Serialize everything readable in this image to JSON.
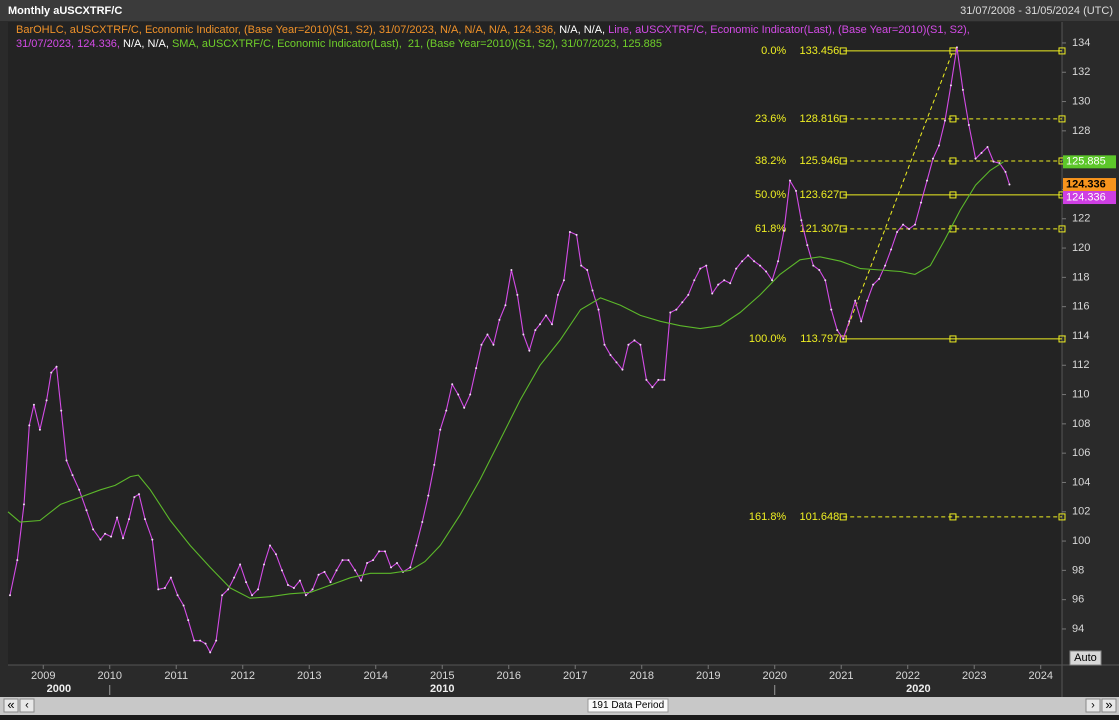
{
  "chart_data": {
    "type": "line",
    "title": "Monthly aUSCXTRF/C",
    "date_range": "31/07/2008 - 31/05/2024 (UTC)",
    "legend": [
      [
        {
          "text": "BarOHLC, aUSCXTRF/C, Economic Indicator, (Base Year=2010)(S1, S2), 31/07/2023, N/A, N/A, N/A, 124.336, ",
          "color": "#f0922a"
        },
        {
          "text": "N/A, N/A, ",
          "color": "#ffffff"
        },
        {
          "text": "Line, aUSCXTRF/C, Economic Indicator(Last), (Base Year=2010)(S1, S2),",
          "color": "#d34be6"
        }
      ],
      [
        {
          "text": "31/07/2023, 124.336, ",
          "color": "#d34be6"
        },
        {
          "text": "N/A, N/A, ",
          "color": "#ffffff"
        },
        {
          "text": "SMA, aUSCXTRF/C, Economic Indicator(Last),  21, (Base Year=2010)(S1, S2), 31/07/2023, 125.885",
          "color": "#6fcf2a"
        }
      ]
    ],
    "xlim": [
      2008.47,
      2024.32
    ],
    "xticks": [
      2009,
      2010,
      2011,
      2012,
      2013,
      2014,
      2015,
      2016,
      2017,
      2018,
      2019,
      2020,
      2021,
      2022,
      2023,
      2024
    ],
    "decades": [
      2000,
      2010,
      2020
    ],
    "ylim": [
      91.54,
      135.43
    ],
    "yticks": [
      94,
      96,
      98,
      100,
      102,
      104,
      106,
      108,
      110,
      112,
      114,
      116,
      118,
      120,
      122,
      124,
      126,
      128,
      130,
      132,
      134
    ],
    "series": [
      {
        "name": "Line",
        "color": "#d34be6",
        "markers": true,
        "x": [
          2008.5,
          2008.61,
          2008.71,
          2008.79,
          2008.86,
          2008.95,
          2009.05,
          2009.12,
          2009.2,
          2009.27,
          2009.35,
          2009.44,
          2009.54,
          2009.65,
          2009.75,
          2009.86,
          2009.93,
          2010.02,
          2010.11,
          2010.2,
          2010.29,
          2010.37,
          2010.44,
          2010.53,
          2010.64,
          2010.73,
          2010.83,
          2010.92,
          2011.02,
          2011.11,
          2011.18,
          2011.27,
          2011.36,
          2011.44,
          2011.51,
          2011.6,
          2011.69,
          2011.78,
          2011.87,
          2011.96,
          2012.05,
          2012.14,
          2012.23,
          2012.32,
          2012.41,
          2012.5,
          2012.59,
          2012.68,
          2012.77,
          2012.86,
          2012.95,
          2013.05,
          2013.14,
          2013.23,
          2013.32,
          2013.41,
          2013.5,
          2013.59,
          2013.69,
          2013.78,
          2013.87,
          2013.96,
          2014.05,
          2014.14,
          2014.23,
          2014.32,
          2014.41,
          2014.52,
          2014.61,
          2014.7,
          2014.79,
          2014.88,
          2014.97,
          2015.06,
          2015.15,
          2015.24,
          2015.33,
          2015.42,
          2015.51,
          2015.59,
          2015.68,
          2015.77,
          2015.86,
          2015.95,
          2016.04,
          2016.13,
          2016.22,
          2016.31,
          2016.4,
          2016.47,
          2016.56,
          2016.65,
          2016.74,
          2016.83,
          2016.92,
          2017.02,
          2017.09,
          2017.18,
          2017.26,
          2017.35,
          2017.44,
          2017.53,
          2017.62,
          2017.71,
          2017.8,
          2017.89,
          2017.98,
          2018.07,
          2018.16,
          2018.25,
          2018.34,
          2018.43,
          2018.52,
          2018.61,
          2018.7,
          2018.79,
          2018.88,
          2018.97,
          2019.06,
          2019.15,
          2019.24,
          2019.33,
          2019.42,
          2019.51,
          2019.6,
          2019.69,
          2019.78,
          2019.87,
          2019.96,
          2020.05,
          2020.14,
          2020.23,
          2020.32,
          2020.4,
          2020.49,
          2020.58,
          2020.67,
          2020.76,
          2020.85,
          2020.94,
          2021.03,
          2021.12,
          2021.21,
          2021.3,
          2021.39,
          2021.48,
          2021.57,
          2021.66,
          2021.75,
          2021.84,
          2021.93,
          2022.02,
          2022.11,
          2022.2,
          2022.29,
          2022.38,
          2022.47,
          2022.56,
          2022.65,
          2022.74,
          2022.83,
          2022.92,
          2023.02,
          2023.11,
          2023.2,
          2023.29,
          2023.38,
          2023.47,
          2023.53
        ],
        "values": [
          96.3,
          98.7,
          102.5,
          107.9,
          109.3,
          107.6,
          109.6,
          111.5,
          111.9,
          108.9,
          105.5,
          104.5,
          103.5,
          102.1,
          100.8,
          100.1,
          100.5,
          100.3,
          101.6,
          100.2,
          101.5,
          103.0,
          103.2,
          101.5,
          100.1,
          96.7,
          96.8,
          97.5,
          96.3,
          95.6,
          94.6,
          93.2,
          93.2,
          93.0,
          92.4,
          93.2,
          96.3,
          96.7,
          97.5,
          98.4,
          97.2,
          96.3,
          96.7,
          98.4,
          99.7,
          99.1,
          98.0,
          97.0,
          96.8,
          97.3,
          96.3,
          96.7,
          97.7,
          97.9,
          97.2,
          98.0,
          98.7,
          98.7,
          98.0,
          97.3,
          98.5,
          98.7,
          99.3,
          99.3,
          98.2,
          98.5,
          97.9,
          98.2,
          99.7,
          101.3,
          103.1,
          105.2,
          107.6,
          108.9,
          110.7,
          110.0,
          109.1,
          110.0,
          111.8,
          113.4,
          114.1,
          113.4,
          115.1,
          116.1,
          118.5,
          116.8,
          114.1,
          113.0,
          114.4,
          114.8,
          115.4,
          114.8,
          116.8,
          117.8,
          121.1,
          120.9,
          118.8,
          118.5,
          117.1,
          115.8,
          113.4,
          112.7,
          112.2,
          111.7,
          113.4,
          113.7,
          113.4,
          111.0,
          110.5,
          111.0,
          111.0,
          115.6,
          115.8,
          116.3,
          116.8,
          117.8,
          118.6,
          118.8,
          116.9,
          117.5,
          117.8,
          117.6,
          118.6,
          119.1,
          119.5,
          119.1,
          118.8,
          118.4,
          117.8,
          119.1,
          121.2,
          124.6,
          123.9,
          121.9,
          120.2,
          118.8,
          118.5,
          117.8,
          115.8,
          114.4,
          113.8,
          115.0,
          116.4,
          115.0,
          116.4,
          117.5,
          117.9,
          118.8,
          119.9,
          121.1,
          121.6,
          121.3,
          121.6,
          123.1,
          124.6,
          126.1,
          127.0,
          128.7,
          131.1,
          133.7,
          130.8,
          128.4,
          126.1,
          126.5,
          126.9,
          125.9,
          125.8,
          125.2,
          124.336
        ]
      },
      {
        "name": "SMA",
        "color": "#5cb82a",
        "markers": false,
        "x": [
          2008.47,
          2008.65,
          2008.95,
          2009.26,
          2009.56,
          2009.86,
          2010.08,
          2010.31,
          2010.43,
          2010.61,
          2010.91,
          2011.21,
          2011.51,
          2011.81,
          2012.11,
          2012.41,
          2012.71,
          2013.02,
          2013.32,
          2013.62,
          2013.92,
          2014.22,
          2014.52,
          2014.74,
          2014.97,
          2015.27,
          2015.57,
          2015.87,
          2016.17,
          2016.47,
          2016.77,
          2017.08,
          2017.38,
          2017.68,
          2017.98,
          2018.28,
          2018.58,
          2018.88,
          2019.18,
          2019.48,
          2019.78,
          2020.08,
          2020.38,
          2020.68,
          2020.99,
          2021.29,
          2021.59,
          2021.89,
          2022.11,
          2022.34,
          2022.56,
          2022.79,
          2023.02,
          2023.24,
          2023.44
        ],
        "values": [
          102.0,
          101.3,
          101.4,
          102.5,
          103.0,
          103.5,
          103.8,
          104.4,
          104.5,
          103.5,
          101.4,
          99.7,
          98.2,
          96.8,
          96.1,
          96.2,
          96.4,
          96.5,
          97.0,
          97.5,
          97.8,
          97.8,
          98.0,
          98.6,
          99.7,
          101.8,
          104.2,
          106.9,
          109.6,
          112.0,
          113.7,
          115.8,
          116.6,
          116.1,
          115.4,
          115.0,
          114.7,
          114.5,
          114.7,
          115.6,
          116.8,
          118.2,
          119.2,
          119.4,
          119.1,
          118.6,
          118.5,
          118.4,
          118.2,
          118.8,
          120.6,
          122.6,
          124.3,
          125.3,
          125.885
        ]
      }
    ],
    "fibonacci": {
      "color": "#eeee22",
      "x": [
        2021.03,
        2022.68
      ],
      "levels": [
        {
          "ratio": "0.0%",
          "value": 133.456,
          "dashed": false
        },
        {
          "ratio": "23.6%",
          "value": 128.816,
          "dashed": true
        },
        {
          "ratio": "38.2%",
          "value": 125.946,
          "dashed": true
        },
        {
          "ratio": "50.0%",
          "value": 123.627,
          "dashed": false
        },
        {
          "ratio": "61.8%",
          "value": 121.307,
          "dashed": true
        },
        {
          "ratio": "100.0%",
          "value": 113.797,
          "dashed": false
        },
        {
          "ratio": "161.8%",
          "value": 101.648,
          "dashed": true
        }
      ]
    },
    "price_tags": [
      {
        "value": 125.885,
        "color": "#5cc72a"
      },
      {
        "value": 124.336,
        "color": "#f7941d"
      },
      {
        "value": 124.336,
        "color": "#cf3fe4"
      }
    ],
    "footer_label": "191 Data Period",
    "button": "Auto"
  }
}
